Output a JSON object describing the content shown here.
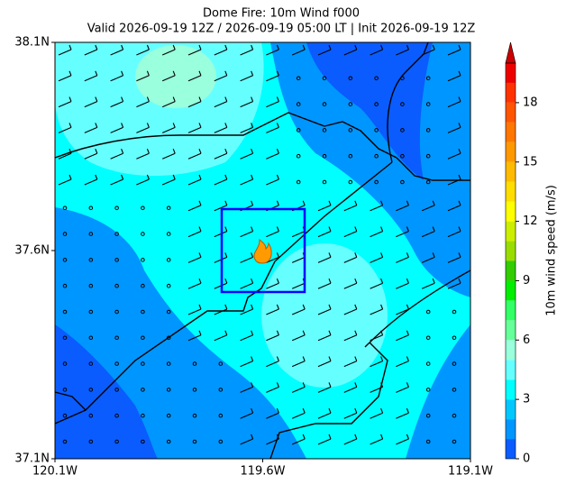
{
  "chart_data": {
    "type": "map",
    "title": "Dome Fire: 10m Wind f000",
    "subtitle": "Valid 2026-09-19 12Z / 2026-09-19 05:00 LT | Init 2026-09-19 12Z",
    "xlim": [
      -120.1,
      -119.1
    ],
    "ylim": [
      37.1,
      38.1
    ],
    "xticks": [
      {
        "value": -120.1,
        "label": "120.1W"
      },
      {
        "value": -119.6,
        "label": "119.6W"
      },
      {
        "value": -119.1,
        "label": "119.1W"
      }
    ],
    "yticks": [
      {
        "value": 37.1,
        "label": "37.1N"
      },
      {
        "value": 37.6,
        "label": "37.6N"
      },
      {
        "value": 38.1,
        "label": "38.1N"
      }
    ],
    "colorbar": {
      "label": "10m wind speed (m/s)",
      "levels": [
        0,
        1,
        2,
        3,
        4,
        5,
        6,
        7,
        8,
        9,
        10,
        11,
        12,
        13,
        14,
        15,
        16,
        17,
        18,
        19,
        20
      ],
      "colors": [
        "#0a5cff",
        "#0096ff",
        "#00c8ff",
        "#00ffff",
        "#66ffff",
        "#99ffdd",
        "#66ff99",
        "#33ff66",
        "#00ee00",
        "#33cc00",
        "#99dd00",
        "#ccee00",
        "#ffff00",
        "#ffdd00",
        "#ffbb00",
        "#ff9900",
        "#ff7700",
        "#ff5500",
        "#ff3300",
        "#ee0000"
      ],
      "extend_color": "#cc0000",
      "ticks": [
        0,
        3,
        6,
        9,
        12,
        15,
        18
      ]
    }
  }
}
